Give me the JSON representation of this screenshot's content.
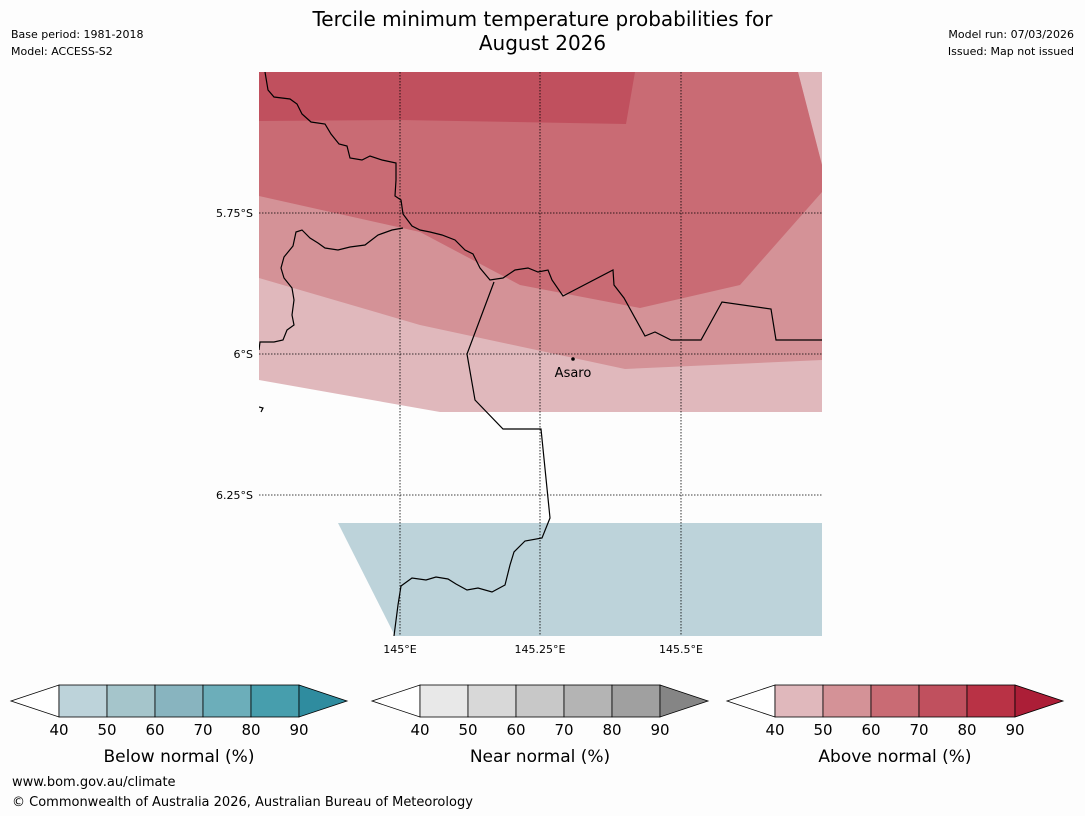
{
  "header": {
    "title_line1": "Tercile minimum temperature probabilities for",
    "title_line2": "August 2026",
    "base_period": "Base period: 1981-2018",
    "model": "Model: ACCESS-S2",
    "model_run": "Model run: 07/03/2026",
    "issued": "Issued: Map not issued"
  },
  "map": {
    "lat_labels": [
      "5.75°S",
      "6°S",
      "6.25°S"
    ],
    "lon_labels": [
      "145°E",
      "145.25°E",
      "145.5°E"
    ],
    "place": {
      "name": "Asaro",
      "lon": 145.32,
      "lat": -6.01
    }
  },
  "legends": [
    {
      "label": "Below normal (%)",
      "ticks": [
        "40",
        "50",
        "60",
        "70",
        "80",
        "90"
      ],
      "colors": [
        "#bdd3da",
        "#a5c5cb",
        "#88b4bf",
        "#6caeba",
        "#479ead",
        "#2f8c9f"
      ]
    },
    {
      "label": "Near normal (%)",
      "ticks": [
        "40",
        "50",
        "60",
        "70",
        "80",
        "90"
      ],
      "colors": [
        "#e8e8e8",
        "#d8d8d8",
        "#c8c8c8",
        "#b4b4b4",
        "#a0a0a0",
        "#858585"
      ]
    },
    {
      "label": "Above normal (%)",
      "ticks": [
        "40",
        "50",
        "60",
        "70",
        "80",
        "90"
      ],
      "colors": [
        "#e0b8bc",
        "#d49297",
        "#c96b74",
        "#c0505e",
        "#b93245",
        "#ac1e37"
      ]
    }
  ],
  "footer": {
    "url": "www.bom.gov.au/climate",
    "copyright": "© Commonwealth of Australia 2026, Australian Bureau of Meteorology"
  }
}
